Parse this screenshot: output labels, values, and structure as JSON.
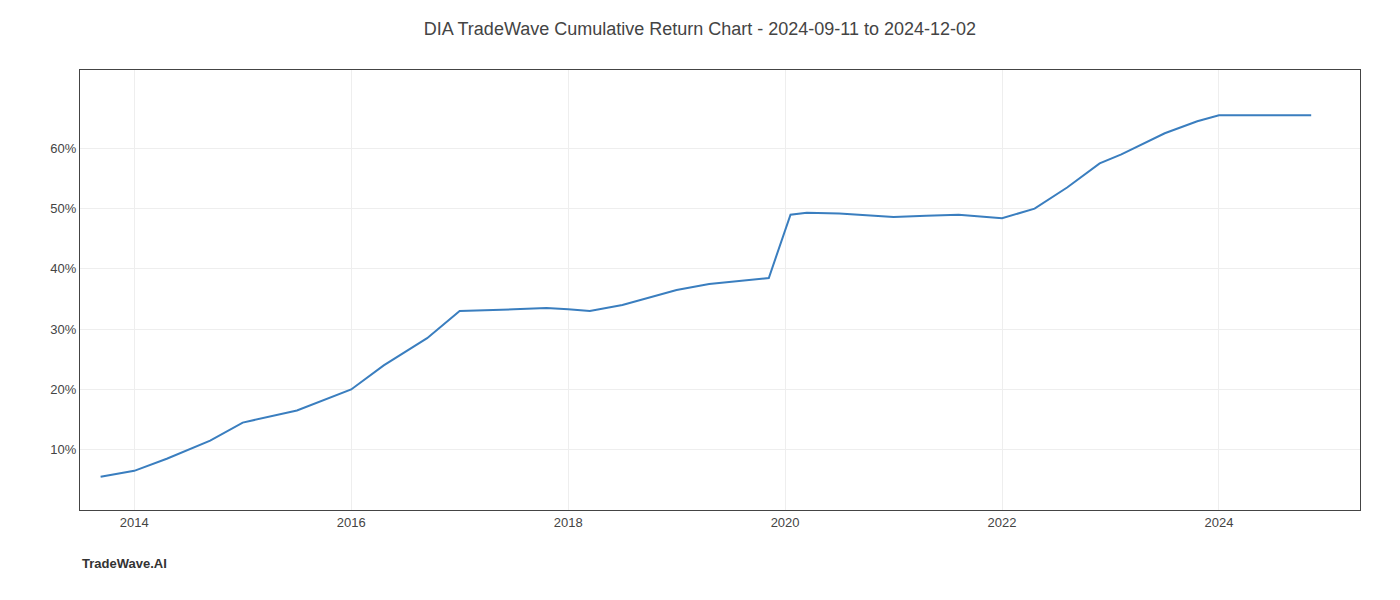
{
  "chart_data": {
    "type": "line",
    "title": "DIA TradeWave Cumulative Return Chart - 2024-09-11 to 2024-12-02",
    "annotations": [
      "TradeWave.AI"
    ],
    "x": [
      2013.69,
      2014.0,
      2014.3,
      2014.7,
      2015.0,
      2015.5,
      2016.0,
      2016.3,
      2016.7,
      2017.0,
      2017.5,
      2017.8,
      2018.0,
      2018.2,
      2018.5,
      2018.8,
      2019.0,
      2019.3,
      2019.6,
      2019.85,
      2020.05,
      2020.2,
      2020.5,
      2020.8,
      2021.0,
      2021.3,
      2021.6,
      2021.8,
      2022.0,
      2022.3,
      2022.6,
      2022.9,
      2023.1,
      2023.5,
      2023.8,
      2024.0,
      2024.5,
      2024.85
    ],
    "values": [
      5.5,
      6.5,
      8.5,
      11.5,
      14.5,
      16.5,
      20.0,
      24.0,
      28.5,
      33.0,
      33.3,
      33.5,
      33.3,
      33.0,
      34.0,
      35.5,
      36.5,
      37.5,
      38.0,
      38.5,
      49.0,
      49.3,
      49.2,
      48.8,
      48.6,
      48.8,
      49.0,
      48.7,
      48.4,
      50.0,
      53.5,
      57.5,
      59.0,
      62.5,
      64.5,
      65.5,
      65.5,
      65.5
    ],
    "color": "#3a7ebf",
    "xlim": [
      2013.5,
      2025.3
    ],
    "ylim": [
      0,
      73
    ],
    "xticks": [
      2014,
      2016,
      2018,
      2020,
      2022,
      2024
    ],
    "yticks": [
      {
        "value": 10,
        "label": "10%"
      },
      {
        "value": 20,
        "label": "20%"
      },
      {
        "value": 30,
        "label": "30%"
      },
      {
        "value": 40,
        "label": "40%"
      },
      {
        "value": 50,
        "label": "50%"
      },
      {
        "value": 60,
        "label": "60%"
      }
    ],
    "grid": true
  }
}
